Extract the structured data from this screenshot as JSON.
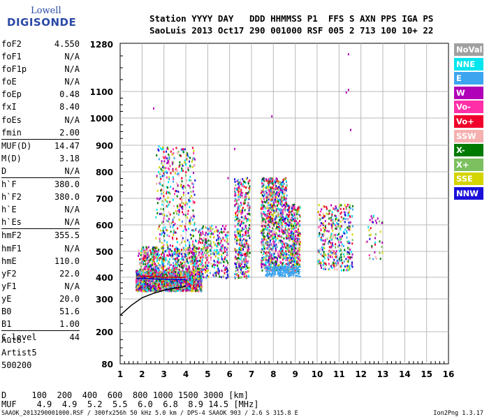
{
  "logo": {
    "line1": "Lowell",
    "line2": "DIGISONDE"
  },
  "header": {
    "line1": "Station YYYY DAY   DDD HHMMSS P1  FFS S AXN PPS IGA PS",
    "line2": "SaoLuis 2013 Oct17 290 001000 RSF 005 2 713 100 10+ 22"
  },
  "params": [
    {
      "k": "foF2",
      "v": "4.550"
    },
    {
      "k": "foF1",
      "v": "N/A"
    },
    {
      "k": "foF1p",
      "v": "N/A"
    },
    {
      "k": "foE",
      "v": "N/A"
    },
    {
      "k": "foEp",
      "v": "0.48"
    },
    {
      "k": "fxI",
      "v": "8.40"
    },
    {
      "k": "foEs",
      "v": "N/A"
    },
    {
      "k": "fmin",
      "v": "2.00"
    },
    {
      "k": "MUF(D)",
      "v": "14.47",
      "sep": true
    },
    {
      "k": "M(D)",
      "v": "3.18"
    },
    {
      "k": "D",
      "v": "N/A"
    },
    {
      "k": "h`F",
      "v": "380.0",
      "sep": true
    },
    {
      "k": "h`F2",
      "v": "380.0"
    },
    {
      "k": "h`E",
      "v": "N/A"
    },
    {
      "k": "h`Es",
      "v": "N/A"
    },
    {
      "k": "hmF2",
      "v": "355.5",
      "sep": true
    },
    {
      "k": "hmF1",
      "v": "N/A"
    },
    {
      "k": "hmE",
      "v": "110.0"
    },
    {
      "k": "yF2",
      "v": "22.0"
    },
    {
      "k": "yF1",
      "v": "N/A"
    },
    {
      "k": "yE",
      "v": "20.0"
    },
    {
      "k": "B0",
      "v": "51.6"
    },
    {
      "k": "B1",
      "v": "1.00"
    },
    {
      "k": "C-level",
      "v": "44",
      "sep": true
    }
  ],
  "auto": [
    "Auto:",
    "Artist5",
    "500200"
  ],
  "legend": [
    {
      "label": "NoVal",
      "color": "#a0a0a0"
    },
    {
      "label": "NNE",
      "color": "#00e5ee"
    },
    {
      "label": "E",
      "color": "#3da5f0"
    },
    {
      "label": "W",
      "color": "#b000b8"
    },
    {
      "label": "Vo-",
      "color": "#ff2fa8"
    },
    {
      "label": "Vo+",
      "color": "#f0002a"
    },
    {
      "label": "SSW",
      "color": "#f5b0b0"
    },
    {
      "label": "X-",
      "color": "#007a00"
    },
    {
      "label": "X+",
      "color": "#7cc060"
    },
    {
      "label": "SSE",
      "color": "#d4d400"
    },
    {
      "label": "NNW",
      "color": "#1a10d8"
    }
  ],
  "footer": {
    "d_line": "D     100  200  400  600  800 1000 1500 3000 [km]",
    "muf_line": "MUF    4.9  4.9  5.2  5.5  6.0  6.8  8.9 14.5 [MHz]",
    "file_line": "SAAOK_2013290001000.RSF / 300fx256h 50 kHz 5.0 km / DPS-4 SAAOK 903 / 2.6 S 315.8 E",
    "version": "Ion2Png 1.3.17"
  },
  "chart_data": {
    "type": "scatter",
    "x": [
      1,
      16
    ],
    "xlim": [
      1,
      16
    ],
    "ylim": [
      80,
      1280
    ],
    "xticks": [
      1,
      2,
      3,
      4,
      5,
      6,
      7,
      8,
      9,
      10,
      11,
      12,
      13,
      14,
      15,
      16
    ],
    "yticks": [
      80,
      200,
      300,
      400,
      500,
      600,
      700,
      800,
      900,
      1000,
      1100,
      1280
    ],
    "y_scale": "nonlinear",
    "grid": true,
    "series": [
      {
        "type": "line",
        "color": "#000",
        "points": [
          [
            1,
            250
          ],
          [
            1.5,
            280
          ],
          [
            2,
            305
          ],
          [
            2.5,
            325
          ],
          [
            3,
            340
          ],
          [
            3.5,
            350
          ],
          [
            4,
            357
          ]
        ]
      },
      {
        "type": "line",
        "color": "#c00000",
        "points": [
          [
            1.8,
            405
          ],
          [
            2.5,
            402
          ],
          [
            3.2,
            400
          ],
          [
            4,
            399
          ]
        ]
      },
      {
        "type": "line",
        "color": "#0000c0",
        "points": [
          [
            1.8,
            395
          ],
          [
            2.6,
            392
          ],
          [
            3.4,
            390
          ],
          [
            4,
            389
          ]
        ]
      }
    ]
  }
}
